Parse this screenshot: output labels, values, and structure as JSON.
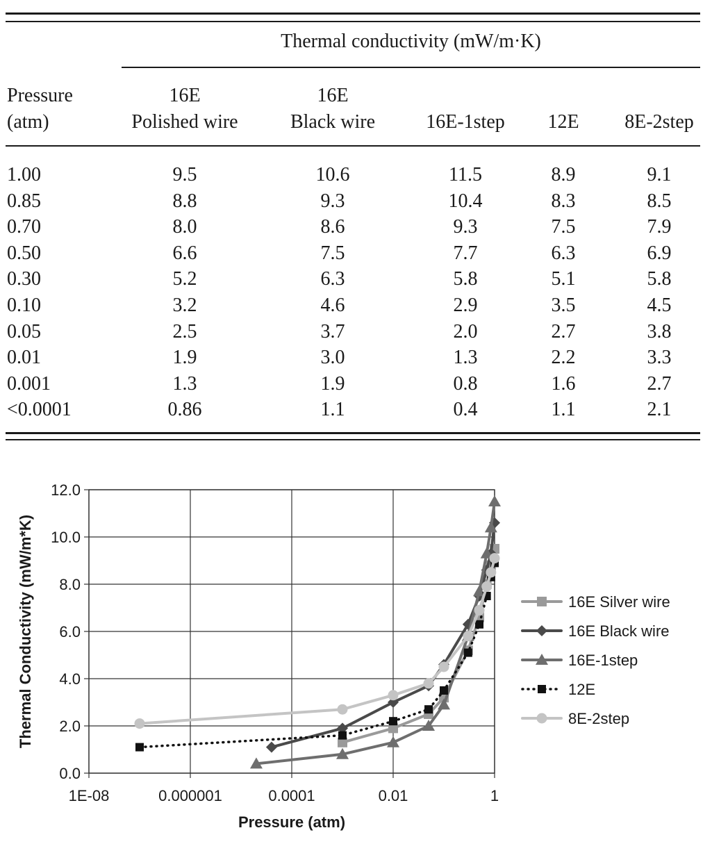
{
  "table": {
    "group_header": "Thermal conductivity (mW/m·K)",
    "columns": [
      {
        "line1": "Pressure",
        "line2": "(atm)"
      },
      {
        "line1": "16E",
        "line2": "Polished wire"
      },
      {
        "line1": "16E",
        "line2": "Black wire"
      },
      {
        "line1": "",
        "line2": "16E-1step"
      },
      {
        "line1": "",
        "line2": "12E"
      },
      {
        "line1": "",
        "line2": "8E-2step"
      }
    ],
    "rows": [
      [
        "1.00",
        "9.5",
        "10.6",
        "11.5",
        "8.9",
        "9.1"
      ],
      [
        "0.85",
        "8.8",
        "9.3",
        "10.4",
        "8.3",
        "8.5"
      ],
      [
        "0.70",
        "8.0",
        "8.6",
        "9.3",
        "7.5",
        "7.9"
      ],
      [
        "0.50",
        "6.6",
        "7.5",
        "7.7",
        "6.3",
        "6.9"
      ],
      [
        "0.30",
        "5.2",
        "6.3",
        "5.8",
        "5.1",
        "5.8"
      ],
      [
        "0.10",
        "3.2",
        "4.6",
        "2.9",
        "3.5",
        "4.5"
      ],
      [
        "0.05",
        "2.5",
        "3.7",
        "2.0",
        "2.7",
        "3.8"
      ],
      [
        "0.01",
        "1.9",
        "3.0",
        "1.3",
        "2.2",
        "3.3"
      ],
      [
        "0.001",
        "1.3",
        "1.9",
        "0.8",
        "1.6",
        "2.7"
      ],
      [
        "<0.0001",
        "0.86",
        "1.1",
        "0.4",
        "1.1",
        "2.1"
      ]
    ]
  },
  "chart_data": {
    "type": "line",
    "title": "",
    "xlabel": "Pressure (atm)",
    "ylabel": "Thermal Conductivity (mW/m*K)",
    "x_scale": "log",
    "xlim": [
      1e-08,
      1
    ],
    "ylim": [
      0,
      12
    ],
    "x_ticks": [
      {
        "value": 1e-08,
        "label": "1E-08"
      },
      {
        "value": 1e-06,
        "label": "0.000001"
      },
      {
        "value": 0.0001,
        "label": "0.0001"
      },
      {
        "value": 0.01,
        "label": "0.01"
      },
      {
        "value": 1,
        "label": "1"
      }
    ],
    "y_ticks": [
      {
        "value": 0,
        "label": "0.0"
      },
      {
        "value": 2,
        "label": "2.0"
      },
      {
        "value": 4,
        "label": "4.0"
      },
      {
        "value": 6,
        "label": "6.0"
      },
      {
        "value": 8,
        "label": "8.0"
      },
      {
        "value": 10,
        "label": "10.0"
      },
      {
        "value": 12,
        "label": "12.0"
      }
    ],
    "grid": true,
    "legend": "right",
    "series": [
      {
        "name": "16E Silver wire",
        "marker": "square",
        "color": "#9a9a9a",
        "dash": false,
        "x": [
          1.0,
          0.85,
          0.7,
          0.5,
          0.3,
          0.1,
          0.05,
          0.01,
          0.001
        ],
        "y": [
          9.5,
          8.8,
          8.0,
          6.6,
          5.2,
          3.2,
          2.5,
          1.9,
          1.3
        ]
      },
      {
        "name": "16E Black wire",
        "marker": "diamond",
        "color": "#4a4a4a",
        "dash": false,
        "x": [
          1.0,
          0.85,
          0.7,
          0.5,
          0.3,
          0.1,
          0.05,
          0.01,
          0.001,
          4e-05
        ],
        "y": [
          10.6,
          9.3,
          8.6,
          7.5,
          6.3,
          4.6,
          3.7,
          3.0,
          1.9,
          1.1
        ]
      },
      {
        "name": "16E-1step",
        "marker": "triangle",
        "color": "#6e6e6e",
        "dash": false,
        "x": [
          1.0,
          0.85,
          0.7,
          0.5,
          0.3,
          0.1,
          0.05,
          0.01,
          0.001,
          2e-05
        ],
        "y": [
          11.5,
          10.4,
          9.3,
          7.7,
          5.8,
          2.9,
          2.0,
          1.3,
          0.8,
          0.4
        ]
      },
      {
        "name": "12E",
        "marker": "square-small",
        "color": "#111111",
        "dash": true,
        "x": [
          1.0,
          0.85,
          0.7,
          0.5,
          0.3,
          0.1,
          0.05,
          0.01,
          0.001,
          1e-07
        ],
        "y": [
          8.9,
          8.3,
          7.5,
          6.3,
          5.1,
          3.5,
          2.7,
          2.2,
          1.6,
          1.1
        ]
      },
      {
        "name": "8E-2step",
        "marker": "circle",
        "color": "#c4c4c4",
        "dash": false,
        "x": [
          1.0,
          0.85,
          0.7,
          0.5,
          0.3,
          0.1,
          0.05,
          0.01,
          0.001,
          1e-07
        ],
        "y": [
          9.1,
          8.5,
          7.9,
          6.9,
          5.8,
          4.5,
          3.8,
          3.3,
          2.7,
          2.1
        ]
      }
    ]
  }
}
